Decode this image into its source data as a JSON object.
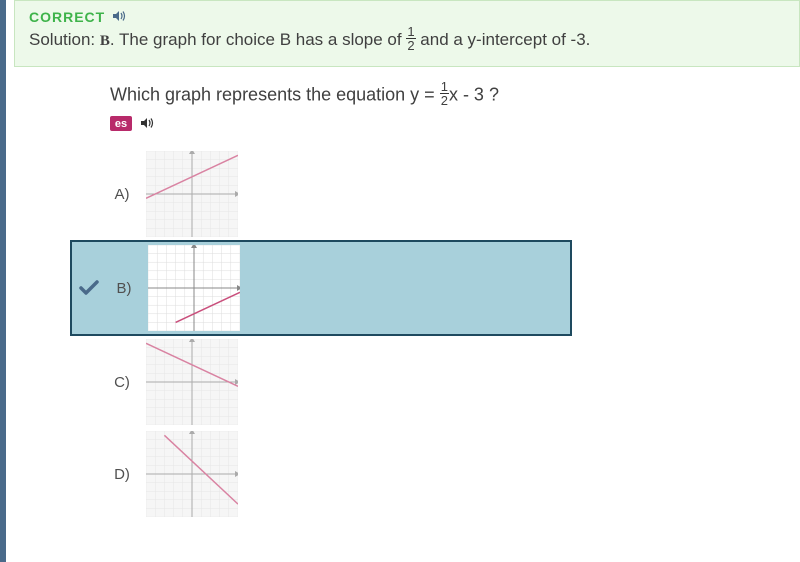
{
  "solution": {
    "correct_label": "Correct",
    "text_prefix": "Solution: ",
    "answer_letter": "B",
    "text_body": ". The graph for choice B has a slope of ",
    "fraction_num": "1",
    "fraction_den": "2",
    "text_suffix": " and a y-intercept of -3.",
    "bg_color": "#edf9ea",
    "border_color": "#c8e6c0",
    "correct_color": "#3eb34a",
    "text_color": "#404040"
  },
  "question": {
    "prefix": "Which graph represents the equation y = ",
    "fraction_num": "1",
    "fraction_den": "2",
    "suffix": "x - 3 ?",
    "es_label": "es",
    "text_color": "#404040",
    "es_bg": "#b82a6a"
  },
  "choices": [
    {
      "letter": "A)",
      "selected": false,
      "line": {
        "x1": -5,
        "y1": -0.5,
        "x2": 5,
        "y2": 4.5,
        "color": "#c94f7c"
      }
    },
    {
      "letter": "B)",
      "selected": true,
      "line": {
        "x1": -2,
        "y1": -4,
        "x2": 5,
        "y2": -0.5,
        "color": "#c94f7c"
      }
    },
    {
      "letter": "C)",
      "selected": false,
      "line": {
        "x1": -5,
        "y1": 4.5,
        "x2": 5,
        "y2": -0.5,
        "color": "#c94f7c"
      }
    },
    {
      "letter": "D)",
      "selected": false,
      "line": {
        "x1": -3,
        "y1": 4.5,
        "x2": 5,
        "y2": -3.5,
        "color": "#c94f7c"
      }
    }
  ],
  "graph_style": {
    "bg": "#f3f3f3",
    "bg_selected": "#ffffff",
    "grid_color": "#dcdcdc",
    "axis_color": "#888888",
    "xlim": [
      -5,
      5
    ],
    "ylim": [
      -5,
      5
    ],
    "line_width": 1.5
  },
  "selected_style": {
    "bg_color": "#a8d0db",
    "border_color": "#1e4a5f",
    "check_color": "#4a6a8a"
  },
  "left_border_color": "#4a6a8a"
}
